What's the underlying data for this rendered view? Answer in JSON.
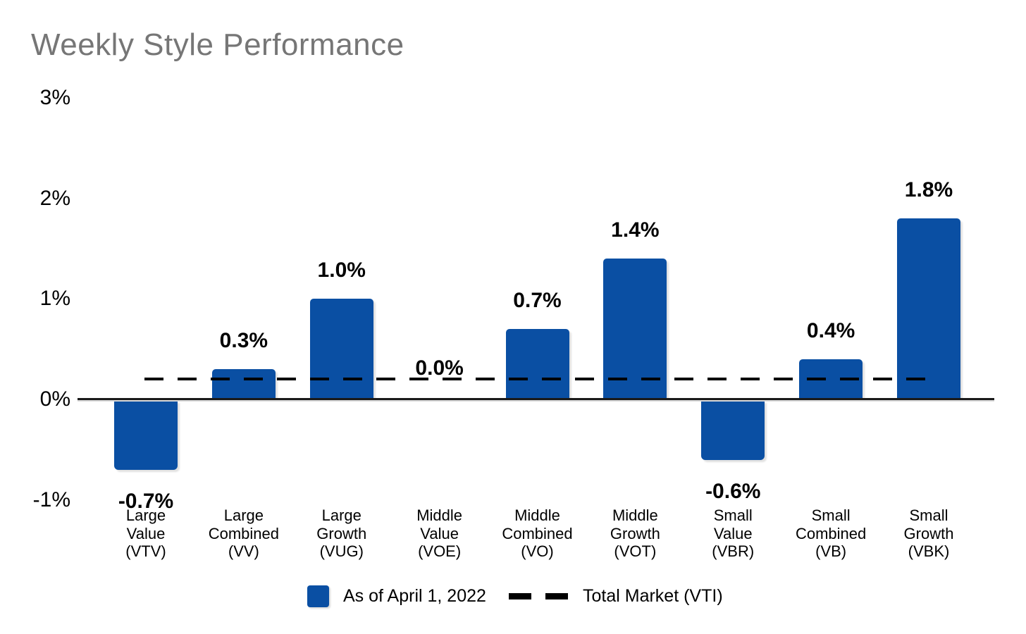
{
  "title": "Weekly Style Performance",
  "colors": {
    "bar_blue": "#0A4FA3",
    "title_gray": "#767676",
    "axis_black": "#1A1A1A",
    "text_black": "#000000",
    "dash_black": "#000000"
  },
  "legend": {
    "series_swatch": "blue-square",
    "series_label": "As of April 1, 2022",
    "reference_swatch": "black-dashed-line",
    "reference_label": "Total Market (VTI)"
  },
  "chart_data": {
    "type": "bar",
    "title": "Weekly Style Performance",
    "series_name": "As of April 1, 2022",
    "categories": [
      [
        "Large",
        "Value",
        "(VTV)"
      ],
      [
        "Large",
        "Combined",
        "(VV)"
      ],
      [
        "Large",
        "Growth",
        "(VUG)"
      ],
      [
        "Middle",
        "Value",
        "(VOE)"
      ],
      [
        "Middle",
        "Combined",
        "(VO)"
      ],
      [
        "Middle",
        "Growth",
        "(VOT)"
      ],
      [
        "Small",
        "Value",
        "(VBR)"
      ],
      [
        "Small",
        "Combined",
        "(VB)"
      ],
      [
        "Small",
        "Growth",
        "(VBK)"
      ]
    ],
    "tickers": [
      "VTV",
      "VV",
      "VUG",
      "VOE",
      "VO",
      "VOT",
      "VBR",
      "VB",
      "VBK"
    ],
    "values": [
      -0.7,
      0.3,
      1.0,
      0.0,
      0.7,
      1.4,
      -0.6,
      0.4,
      1.8
    ],
    "value_labels": [
      "-0.7%",
      "0.3%",
      "1.0%",
      "0.0%",
      "0.7%",
      "1.4%",
      "-0.6%",
      "0.4%",
      "1.8%"
    ],
    "ylabel": "",
    "xlabel": "",
    "ylim": [
      -1,
      3
    ],
    "ytick_labels": [
      "3%",
      "2%",
      "1%",
      "0%",
      "-1%"
    ],
    "ytick_values": [
      3,
      2,
      1,
      0,
      -1
    ],
    "grid": false,
    "legend_position": "bottom",
    "reference_line": {
      "label": "Total Market (VTI)",
      "value": 0.2,
      "style": "dashed"
    }
  }
}
